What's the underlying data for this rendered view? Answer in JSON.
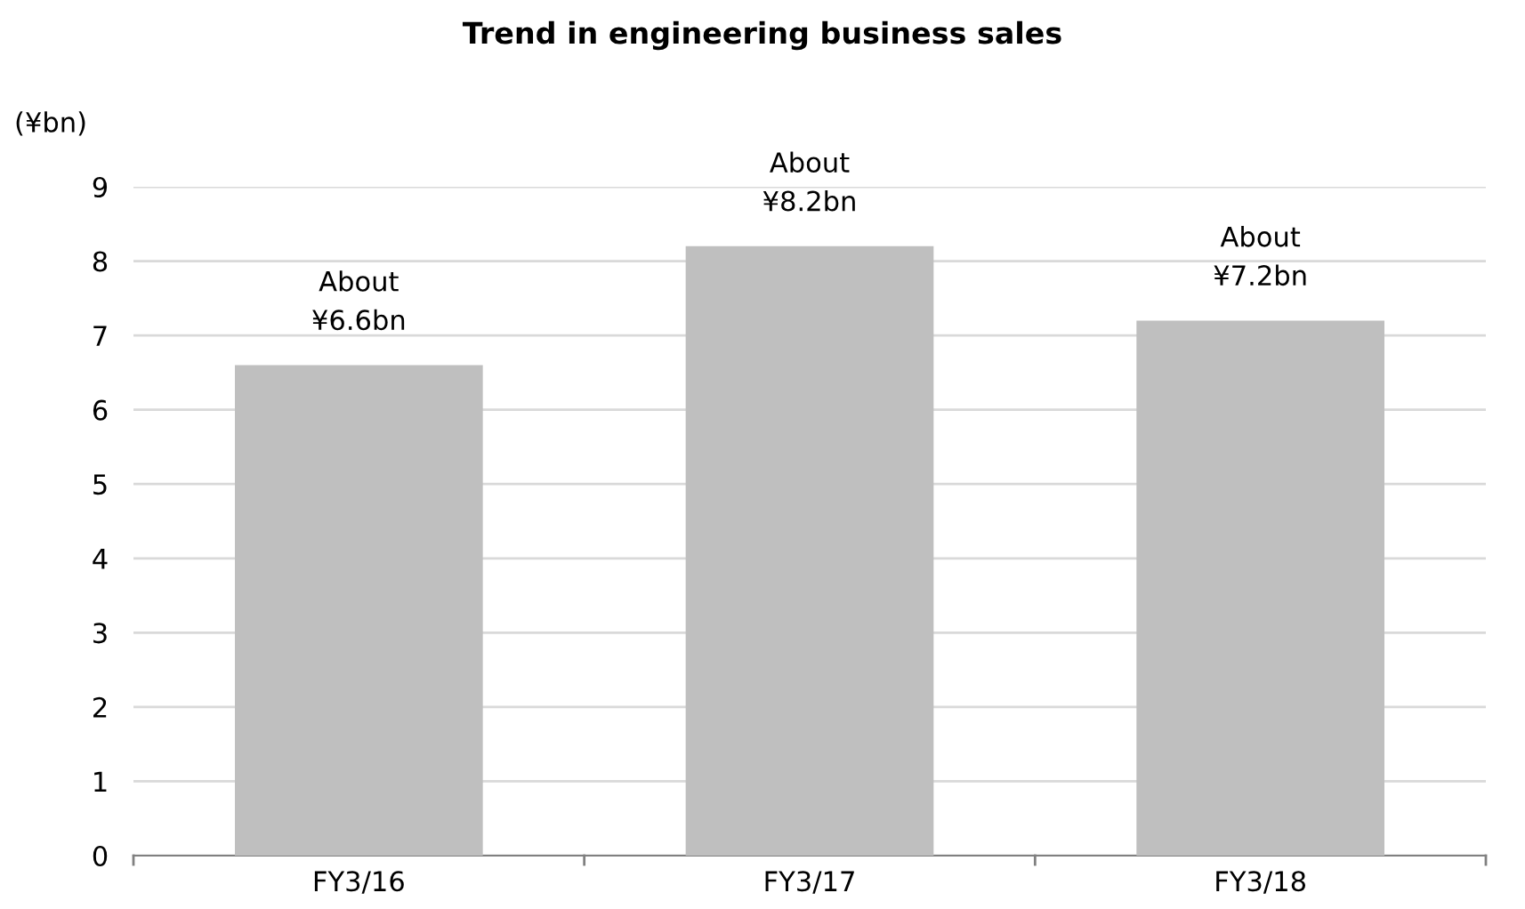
{
  "chart_data": {
    "type": "bar",
    "title": "Trend in engineering business sales",
    "ylabel": "(¥bn)",
    "categories": [
      "FY3/16",
      "FY3/17",
      "FY3/18"
    ],
    "values": [
      6.6,
      8.2,
      7.2
    ],
    "color": "#bfbfbf",
    "value_labels": [
      "About\n¥6.6bn",
      "About\n¥8.2bn",
      "About\n¥7.2bn"
    ],
    "ylim": [
      0,
      9
    ],
    "yticks": [
      0,
      1,
      2,
      3,
      4,
      5,
      6,
      7,
      8,
      9
    ],
    "grid": "y",
    "legend": false
  }
}
